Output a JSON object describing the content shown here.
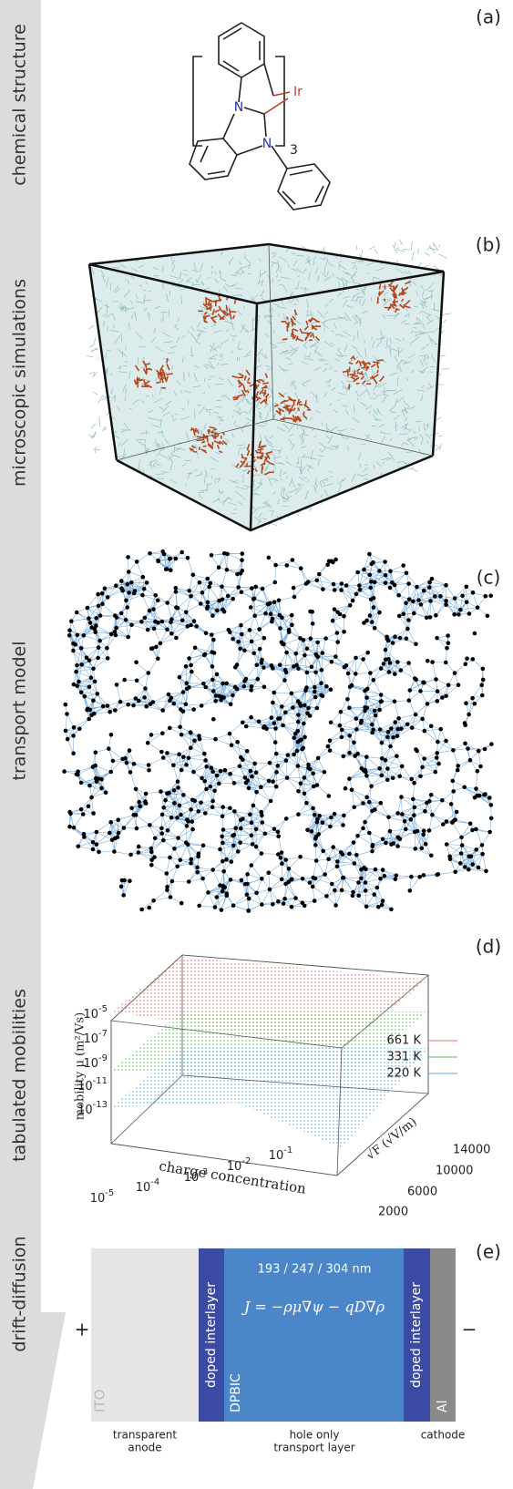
{
  "sidebar": [
    "chemical structure",
    "microscopic simulations",
    "transport model",
    "tabulated mobilities",
    "drift-diffusion"
  ],
  "panel_a": {
    "tag": "(a)",
    "metal": "Ir",
    "count": "3",
    "nitrogen": [
      "N",
      "N"
    ]
  },
  "panel_b": {
    "tag": "(b)"
  },
  "panel_c": {
    "tag": "(c)"
  },
  "panel_d": {
    "tag": "(d)",
    "z_label": "mobility μ (m²/Vs)",
    "x_label": "charge concentration",
    "y_label": "√F (√V/m)",
    "z_ticks": [
      {
        "base": "10",
        "exp": "-5"
      },
      {
        "base": "10",
        "exp": "-7"
      },
      {
        "base": "10",
        "exp": "-9"
      },
      {
        "base": "10",
        "exp": "-11"
      },
      {
        "base": "10",
        "exp": "-13"
      }
    ],
    "x_ticks": [
      {
        "base": "10",
        "exp": "-5"
      },
      {
        "base": "10",
        "exp": "-4"
      },
      {
        "base": "10",
        "exp": "-3"
      },
      {
        "base": "10",
        "exp": "-2"
      },
      {
        "base": "10",
        "exp": "-1"
      }
    ],
    "y_ticks": [
      "14000",
      "10000",
      "6000",
      "2000"
    ],
    "legend": [
      {
        "name": "661 K",
        "color": "#e57373"
      },
      {
        "name": "331 K",
        "color": "#5cb85c"
      },
      {
        "name": "220 K",
        "color": "#5aa7e0"
      }
    ]
  },
  "panel_e": {
    "tag": "(e)",
    "plus": "+",
    "minus": "−",
    "layers": [
      "ITO",
      "doped interlayer",
      "DPBIC",
      "doped interlayer",
      "Al"
    ],
    "thickness": "193 / 247 / 304 nm",
    "equation": "J = −ρμ∇ψ − qD∇ρ",
    "captions": [
      [
        "transparent",
        "anode"
      ],
      [
        "hole only",
        "transport layer"
      ],
      [
        "cathode"
      ]
    ]
  }
}
